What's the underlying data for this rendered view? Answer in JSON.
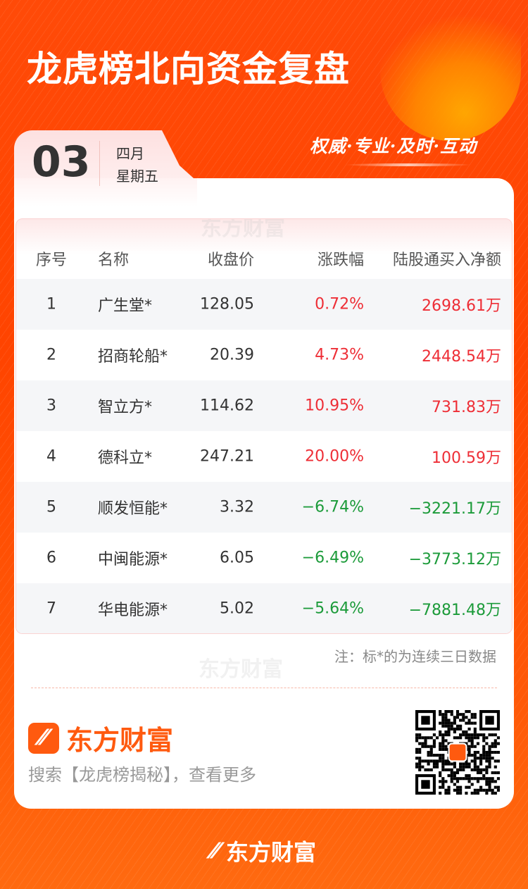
{
  "header": {
    "title": "龙虎榜北向资金复盘",
    "slogan": "权威·专业·及时·互动"
  },
  "date": {
    "day": "03",
    "month": "四月",
    "weekday": "星期五"
  },
  "table": {
    "columns": [
      "序号",
      "名称",
      "收盘价",
      "涨跌幅",
      "陆股通买入净额"
    ],
    "rows": [
      {
        "index": "1",
        "name": "广生堂*",
        "close": "128.05",
        "change": "0.72%",
        "net_buy": "2698.61万",
        "direction": "up"
      },
      {
        "index": "2",
        "name": "招商轮船*",
        "close": "20.39",
        "change": "4.73%",
        "net_buy": "2448.54万",
        "direction": "up"
      },
      {
        "index": "3",
        "name": "智立方*",
        "close": "114.62",
        "change": "10.95%",
        "net_buy": "731.83万",
        "direction": "up"
      },
      {
        "index": "4",
        "name": "德科立*",
        "close": "247.21",
        "change": "20.00%",
        "net_buy": "100.59万",
        "direction": "up"
      },
      {
        "index": "5",
        "name": "顺发恒能*",
        "close": "3.32",
        "change": "−6.74%",
        "net_buy": "−3221.17万",
        "direction": "down"
      },
      {
        "index": "6",
        "name": "中闽能源*",
        "close": "6.05",
        "change": "−6.49%",
        "net_buy": "−3773.12万",
        "direction": "down"
      },
      {
        "index": "7",
        "name": "华电能源*",
        "close": "5.02",
        "change": "−5.64%",
        "net_buy": "−7881.48万",
        "direction": "down"
      }
    ]
  },
  "note": "注：标*的为连续三日数据",
  "brand": {
    "name": "东方财富",
    "search_hint": "搜索【龙虎榜揭秘】，查看更多",
    "watermark": "东方财富"
  },
  "colors": {
    "up": "#ee2e36",
    "down": "#1c9b3a",
    "brand": "#ff5a0f"
  }
}
